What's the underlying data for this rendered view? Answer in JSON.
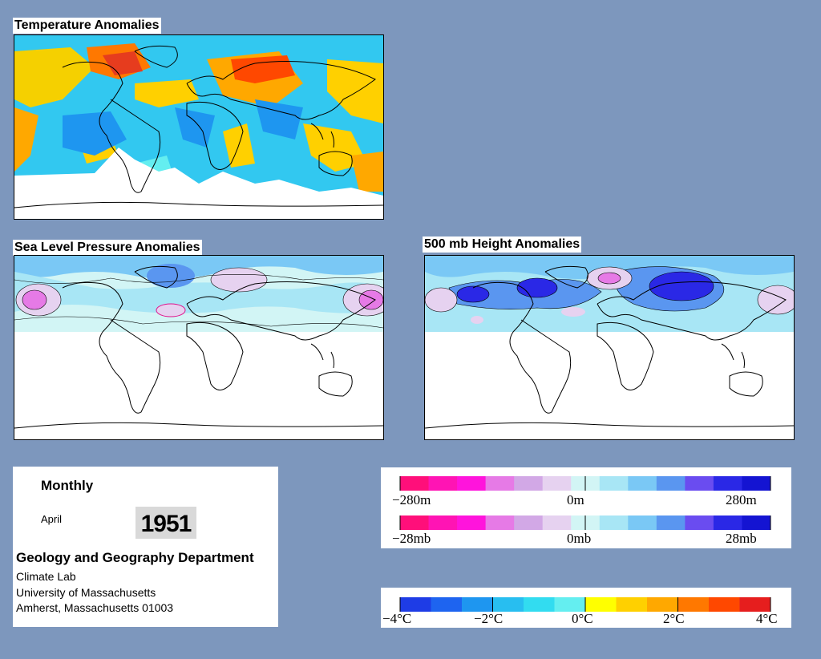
{
  "panels": {
    "temperature": {
      "title": "Temperature Anomalies"
    },
    "slp": {
      "title": "Sea Level Pressure Anomalies"
    },
    "height500": {
      "title": "500 mb Height Anomalies"
    }
  },
  "info": {
    "period_type": "Monthly",
    "month": "April",
    "year": "1951",
    "department": "Geology and Geography Department",
    "lab": "Climate Lab",
    "university": "University of Massachusetts",
    "address": "Amherst, Massachusetts 01003"
  },
  "legend_height": {
    "labels": [
      "−280m",
      "0m",
      "280m"
    ],
    "colors": [
      "#ff0f7a",
      "#ff14b4",
      "#ff14dc",
      "#e67ae6",
      "#d2a8e6",
      "#e6d2f0",
      "#d2f5f5",
      "#a8e6f5",
      "#7ac8f5",
      "#5a96f0",
      "#6a4cf0",
      "#2a28e6",
      "#1414d2"
    ]
  },
  "legend_slp": {
    "labels": [
      "−28mb",
      "0mb",
      "28mb"
    ]
  },
  "legend_temp": {
    "labels": [
      "−4°C",
      "−2°C",
      "0°C",
      "2°C",
      "4°C"
    ],
    "colors": [
      "#1e3ce6",
      "#1e64f0",
      "#1e96f0",
      "#28bef0",
      "#32dcf0",
      "#64eef0",
      "#ffff00",
      "#ffd000",
      "#ffa800",
      "#ff7800",
      "#ff4800",
      "#e61e1e"
    ]
  }
}
